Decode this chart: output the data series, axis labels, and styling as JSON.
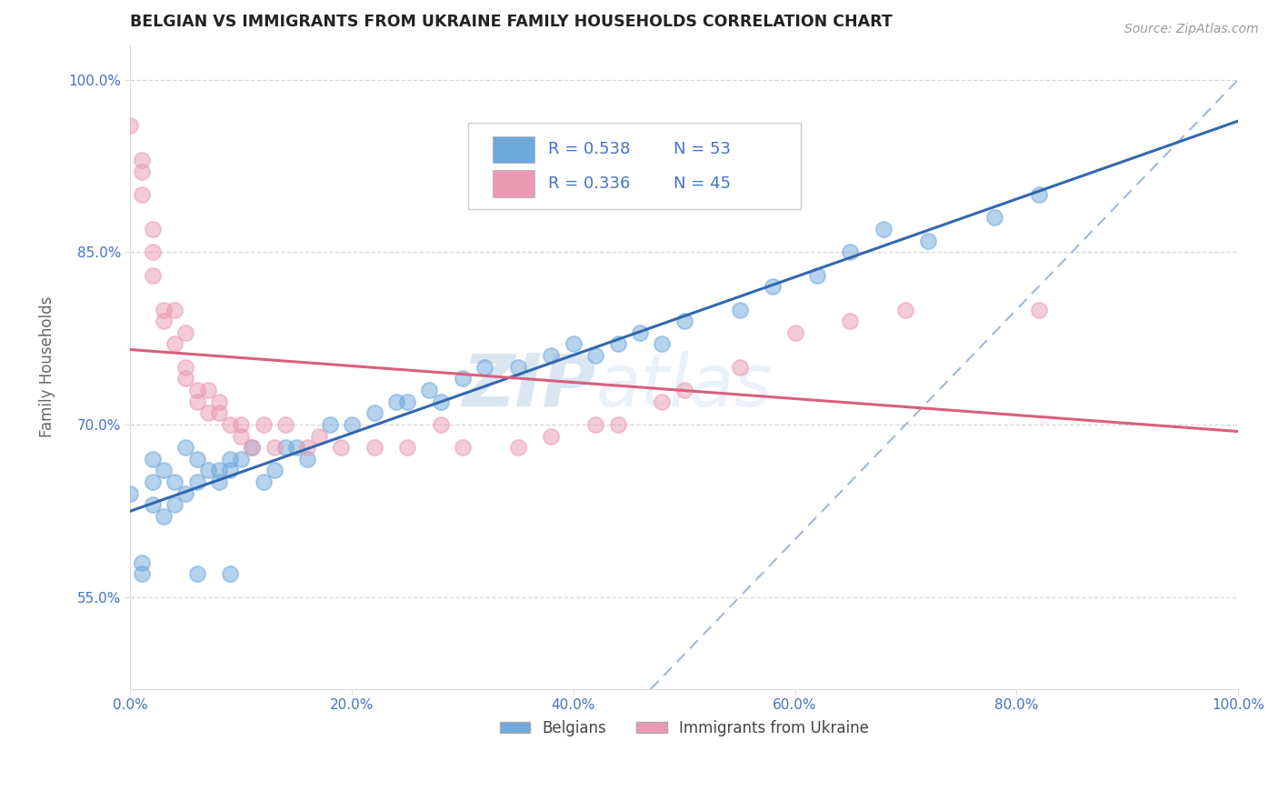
{
  "title": "BELGIAN VS IMMIGRANTS FROM UKRAINE FAMILY HOUSEHOLDS CORRELATION CHART",
  "source": "Source: ZipAtlas.com",
  "ylabel": "Family Households",
  "watermark": "ZIPatlas",
  "xlim": [
    0,
    100
  ],
  "ylim": [
    47,
    103
  ],
  "xticks": [
    0,
    20,
    40,
    60,
    80,
    100
  ],
  "xtick_labels": [
    "0.0%",
    "20.0%",
    "40.0%",
    "60.0%",
    "80.0%",
    "100.0%"
  ],
  "ytick_vals": [
    55,
    70,
    85,
    100
  ],
  "ytick_labels": [
    "55.0%",
    "70.0%",
    "85.0%",
    "100.0%"
  ],
  "belgian_color": "#6fa8dc",
  "ukraine_color": "#ea9ab2",
  "belgian_R": 0.538,
  "belgian_N": 53,
  "ukraine_R": 0.336,
  "ukraine_N": 45,
  "belgian_line_color": "#3267ad",
  "ukraine_line_color": "#d95f7e",
  "diagonal_color": "#a0b8d8",
  "belgian_x": [
    0,
    1,
    1,
    2,
    2,
    2,
    3,
    3,
    4,
    4,
    5,
    5,
    6,
    6,
    7,
    8,
    8,
    9,
    9,
    10,
    11,
    12,
    13,
    14,
    15,
    16,
    18,
    20,
    22,
    24,
    25,
    27,
    28,
    30,
    32,
    35,
    38,
    40,
    42,
    44,
    46,
    48,
    50,
    55,
    58,
    62,
    65,
    68,
    72,
    78,
    82,
    9,
    6
  ],
  "belgian_y": [
    64,
    57,
    58,
    63,
    65,
    67,
    62,
    66,
    63,
    65,
    64,
    68,
    65,
    67,
    66,
    66,
    65,
    66,
    67,
    67,
    68,
    65,
    66,
    68,
    68,
    67,
    70,
    70,
    71,
    72,
    72,
    73,
    72,
    74,
    75,
    75,
    76,
    77,
    76,
    77,
    78,
    77,
    79,
    80,
    82,
    83,
    85,
    87,
    86,
    88,
    90,
    57,
    57
  ],
  "ukraine_x": [
    0,
    1,
    1,
    1,
    2,
    2,
    2,
    3,
    3,
    4,
    4,
    5,
    5,
    5,
    6,
    6,
    7,
    7,
    8,
    8,
    9,
    10,
    10,
    11,
    12,
    13,
    14,
    16,
    17,
    19,
    22,
    25,
    28,
    30,
    35,
    38,
    42,
    44,
    48,
    50,
    55,
    60,
    65,
    70,
    82
  ],
  "ukraine_y": [
    96,
    92,
    93,
    90,
    85,
    87,
    83,
    80,
    79,
    80,
    77,
    78,
    75,
    74,
    73,
    72,
    73,
    71,
    72,
    71,
    70,
    70,
    69,
    68,
    70,
    68,
    70,
    68,
    69,
    68,
    68,
    68,
    70,
    68,
    68,
    69,
    70,
    70,
    72,
    73,
    75,
    78,
    79,
    80,
    80
  ],
  "background_color": "#ffffff",
  "grid_color": "#cccccc",
  "title_color": "#222222",
  "legend_text_color": "#444444",
  "rn_color": "#4472c4",
  "axis_label_color": "#666666"
}
